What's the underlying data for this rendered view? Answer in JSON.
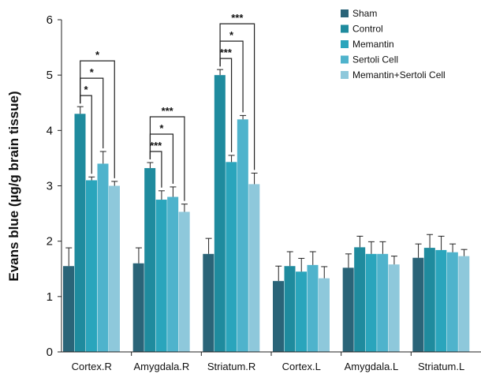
{
  "chart_data": {
    "type": "bar",
    "title": "",
    "xlabel": "",
    "ylabel": "Evans blue (µg/g brain tissue)",
    "ylim": [
      0,
      6
    ],
    "yticks": [
      "0",
      "1",
      "2",
      "3",
      "4",
      "5",
      "6"
    ],
    "grid": false,
    "legend_position": "top-right",
    "categories": [
      "Cortex.R",
      "Amygdala.R",
      "Striatum.R",
      "Cortex.L",
      "Amygdala.L",
      "Striatum.L"
    ],
    "series": [
      {
        "name": "Sham",
        "color": "#2a6478",
        "values": [
          1.55,
          1.6,
          1.77,
          1.28,
          1.52,
          1.7
        ],
        "errors": [
          0.33,
          0.28,
          0.28,
          0.27,
          0.25,
          0.25
        ]
      },
      {
        "name": "Control",
        "color": "#1f8b9e",
        "values": [
          4.3,
          3.32,
          5.0,
          1.55,
          1.89,
          1.88
        ],
        "errors": [
          0.13,
          0.1,
          0.1,
          0.26,
          0.2,
          0.24
        ]
      },
      {
        "name": "Memantin",
        "color": "#2aa5bc",
        "values": [
          3.1,
          2.75,
          3.43,
          1.45,
          1.77,
          1.84
        ],
        "errors": [
          0.06,
          0.16,
          0.12,
          0.24,
          0.22,
          0.25
        ]
      },
      {
        "name": "Sertoli Cell",
        "color": "#4fb3cc",
        "values": [
          3.4,
          2.8,
          4.2,
          1.57,
          1.77,
          1.8
        ],
        "errors": [
          0.22,
          0.18,
          0.07,
          0.24,
          0.22,
          0.15
        ]
      },
      {
        "name": "Memantin+Sertoli Cell",
        "color": "#8ec8db",
        "values": [
          3.0,
          2.53,
          3.03,
          1.33,
          1.58,
          1.73
        ],
        "errors": [
          0.08,
          0.14,
          0.2,
          0.21,
          0.15,
          0.12
        ]
      }
    ],
    "significance": [
      {
        "category": 0,
        "from": 1,
        "to": 2,
        "label": "*"
      },
      {
        "category": 0,
        "from": 1,
        "to": 3,
        "label": "*"
      },
      {
        "category": 0,
        "from": 1,
        "to": 4,
        "label": "*"
      },
      {
        "category": 1,
        "from": 1,
        "to": 2,
        "label": "***"
      },
      {
        "category": 1,
        "from": 1,
        "to": 3,
        "label": "*"
      },
      {
        "category": 1,
        "from": 1,
        "to": 4,
        "label": "***"
      },
      {
        "category": 2,
        "from": 1,
        "to": 2,
        "label": "***"
      },
      {
        "category": 2,
        "from": 1,
        "to": 3,
        "label": "*"
      },
      {
        "category": 2,
        "from": 1,
        "to": 4,
        "label": "***"
      }
    ]
  }
}
